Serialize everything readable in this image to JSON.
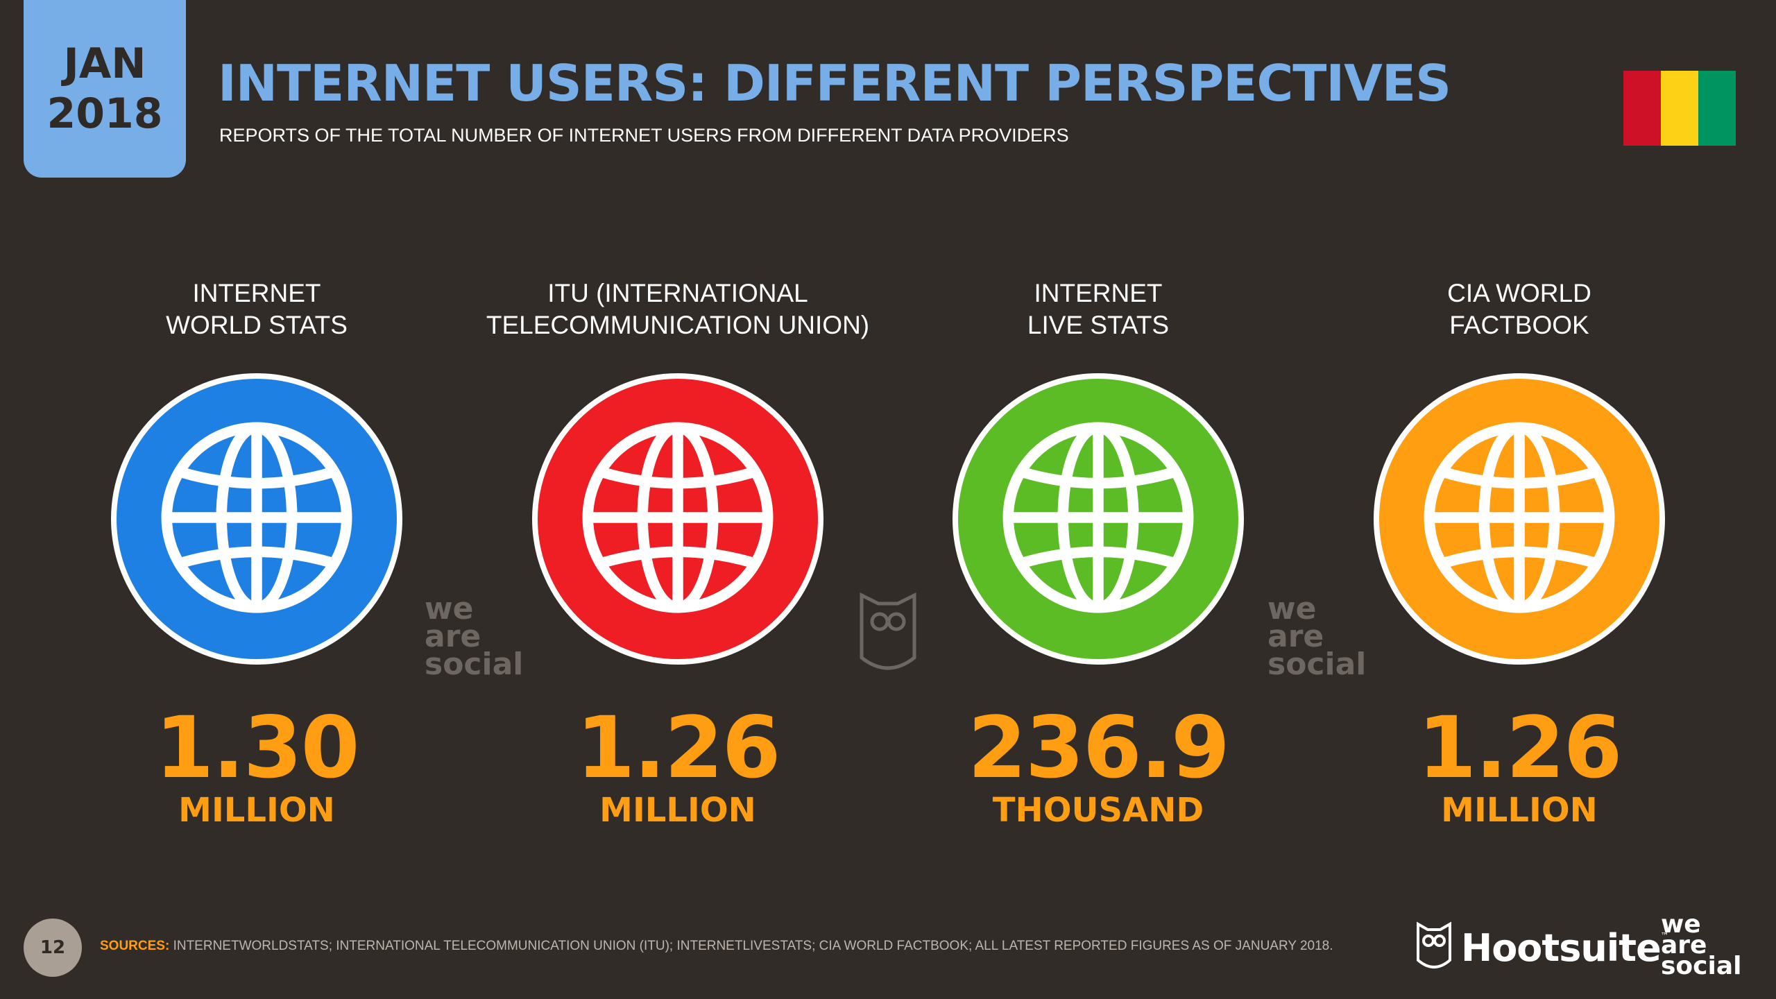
{
  "header": {
    "month": "JAN",
    "year": "2018",
    "title": "INTERNET USERS: DIFFERENT PERSPECTIVES",
    "subtitle": "REPORTS OF THE TOTAL NUMBER OF INTERNET USERS FROM DIFFERENT DATA PROVIDERS"
  },
  "flag": {
    "colors": [
      "#ce1126",
      "#fcd116",
      "#009460"
    ]
  },
  "providers": [
    {
      "label_line1": "INTERNET",
      "label_line2": "WORLD STATS",
      "value": "1.30",
      "unit": "MILLION",
      "color": "#1f80e4",
      "icon": "globe-icon"
    },
    {
      "label_line1": "ITU (INTERNATIONAL",
      "label_line2": "TELECOMMUNICATION UNION)",
      "value": "1.26",
      "unit": "MILLION",
      "color": "#ee1e24",
      "icon": "globe-icon"
    },
    {
      "label_line1": "INTERNET",
      "label_line2": "LIVE STATS",
      "value": "236.9",
      "unit": "THOUSAND",
      "color": "#5bbc26",
      "icon": "globe-icon"
    },
    {
      "label_line1": "CIA WORLD",
      "label_line2": "FACTBOOK",
      "value": "1.26",
      "unit": "MILLION",
      "color": "#ff9e10",
      "icon": "globe-icon"
    }
  ],
  "watermark": {
    "line1": "we",
    "line2": "are",
    "line3": "social"
  },
  "footer": {
    "page_number": "12",
    "sources_label": "SOURCES:",
    "sources_text": " INTERNETWORLDSTATS; INTERNATIONAL TELECOMMUNICATION UNION (ITU); INTERNETLIVESTATS; CIA WORLD FACTBOOK; ALL LATEST REPORTED FIGURES AS OF JANUARY 2018.",
    "hootsuite": "Hootsuite",
    "tm": "™",
    "was_line1": "we",
    "was_line2": "are",
    "was_line3": "social"
  }
}
